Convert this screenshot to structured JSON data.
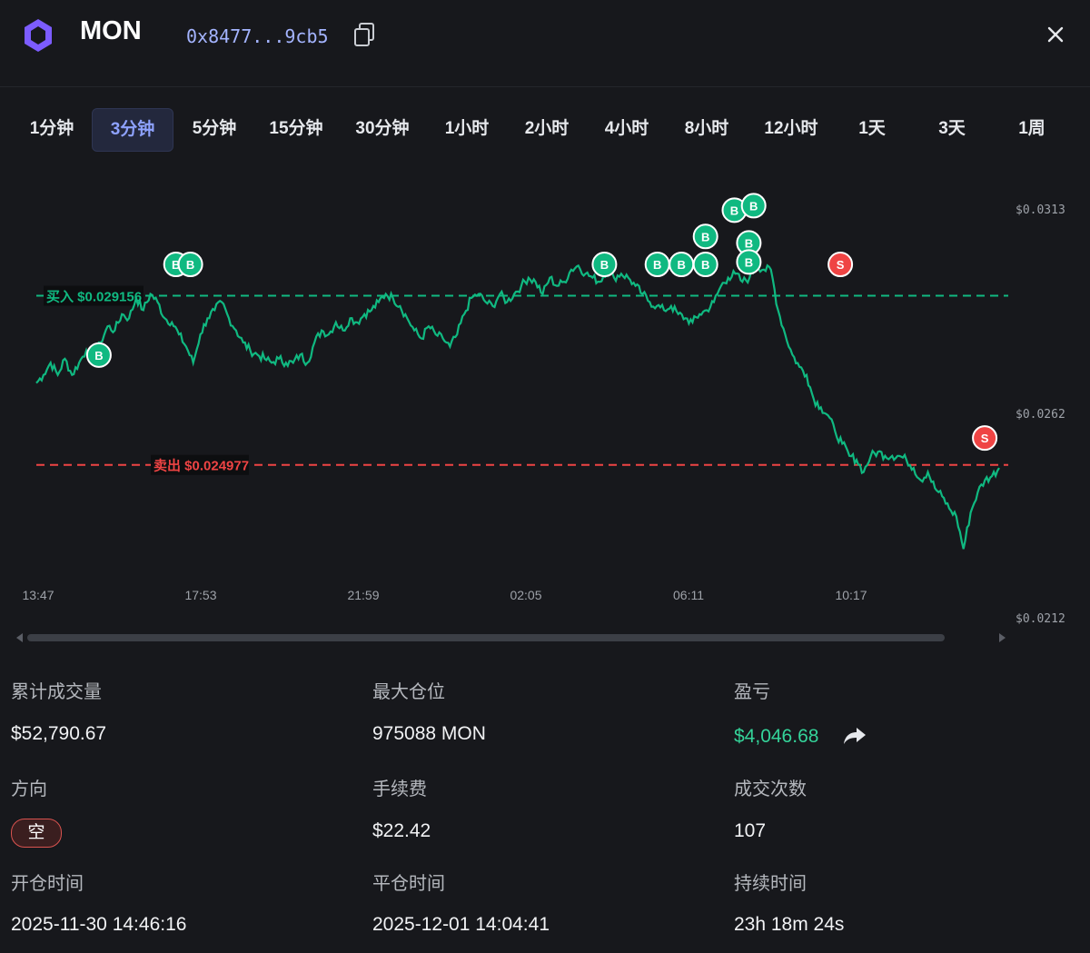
{
  "header": {
    "token": "MON",
    "address": "0x8477...9cb5",
    "logo_icon": "hexagon-logo",
    "copy_icon": "copy-icon",
    "close_icon": "close-icon"
  },
  "timeframes": {
    "active": "3分钟",
    "items": [
      "1分钟",
      "3分钟",
      "5分钟",
      "15分钟",
      "30分钟",
      "1小时",
      "2小时",
      "4小时",
      "8小时",
      "12小时",
      "1天",
      "3天",
      "1周"
    ]
  },
  "chart_data": {
    "type": "line",
    "x_ticks": [
      "13:47",
      "17:53",
      "21:59",
      "02:05",
      "06:11",
      "10:17"
    ],
    "y_ticks": [
      "$0.0313",
      "$0.0262",
      "$0.0212"
    ],
    "ylim": [
      0.0212,
      0.0313
    ],
    "series_color": "#10b981",
    "reference_lines": [
      {
        "label": "买入 $0.029156",
        "value": 0.029156,
        "color": "#10b981",
        "style": "dashed"
      },
      {
        "label": "卖出 $0.024977",
        "value": 0.024977,
        "color": "#ef4444",
        "style": "dashed"
      }
    ],
    "markers": [
      {
        "type": "B",
        "t": 0.065,
        "price": 0.02769
      },
      {
        "type": "B",
        "t": 0.145,
        "price": 0.02993
      },
      {
        "type": "B",
        "t": 0.16,
        "price": 0.02993
      },
      {
        "type": "B",
        "t": 0.59,
        "price": 0.02993
      },
      {
        "type": "B",
        "t": 0.645,
        "price": 0.02993
      },
      {
        "type": "B",
        "t": 0.67,
        "price": 0.02993
      },
      {
        "type": "B",
        "t": 0.695,
        "price": 0.02993
      },
      {
        "type": "B",
        "t": 0.695,
        "price": 0.03062
      },
      {
        "type": "B",
        "t": 0.725,
        "price": 0.03127
      },
      {
        "type": "B",
        "t": 0.745,
        "price": 0.03138
      },
      {
        "type": "B",
        "t": 0.74,
        "price": 0.03046
      },
      {
        "type": "B",
        "t": 0.74,
        "price": 0.02999
      },
      {
        "type": "S",
        "t": 0.835,
        "price": 0.02993
      },
      {
        "type": "S",
        "t": 0.985,
        "price": 0.02564
      }
    ],
    "price_path": [
      [
        0,
        0.027
      ],
      [
        0.01,
        0.0272
      ],
      [
        0.02,
        0.0275
      ],
      [
        0.03,
        0.0272
      ],
      [
        0.04,
        0.0276
      ],
      [
        0.05,
        0.0272
      ],
      [
        0.06,
        0.0275
      ],
      [
        0.07,
        0.0278
      ],
      [
        0.08,
        0.0276
      ],
      [
        0.09,
        0.028
      ],
      [
        0.1,
        0.0284
      ],
      [
        0.11,
        0.0283
      ],
      [
        0.12,
        0.0287
      ],
      [
        0.13,
        0.0286
      ],
      [
        0.14,
        0.0291
      ],
      [
        0.15,
        0.0288
      ],
      [
        0.16,
        0.0292
      ],
      [
        0.17,
        0.029
      ],
      [
        0.18,
        0.0286
      ],
      [
        0.19,
        0.0285
      ],
      [
        0.2,
        0.0282
      ],
      [
        0.21,
        0.0279
      ],
      [
        0.22,
        0.0275
      ],
      [
        0.23,
        0.0282
      ],
      [
        0.24,
        0.0286
      ],
      [
        0.25,
        0.0288
      ],
      [
        0.26,
        0.029
      ],
      [
        0.27,
        0.0286
      ],
      [
        0.28,
        0.0283
      ],
      [
        0.29,
        0.028
      ],
      [
        0.3,
        0.0278
      ],
      [
        0.31,
        0.0277
      ],
      [
        0.32,
        0.0276
      ],
      [
        0.33,
        0.0275
      ],
      [
        0.34,
        0.0276
      ],
      [
        0.35,
        0.0275
      ],
      [
        0.36,
        0.0275
      ],
      [
        0.37,
        0.0277
      ],
      [
        0.38,
        0.0275
      ],
      [
        0.39,
        0.028
      ],
      [
        0.4,
        0.0283
      ],
      [
        0.41,
        0.0282
      ],
      [
        0.42,
        0.0285
      ],
      [
        0.43,
        0.0283
      ],
      [
        0.44,
        0.0286
      ],
      [
        0.45,
        0.0285
      ],
      [
        0.46,
        0.0287
      ],
      [
        0.47,
        0.0288
      ],
      [
        0.48,
        0.029
      ],
      [
        0.49,
        0.0292
      ],
      [
        0.5,
        0.0291
      ],
      [
        0.51,
        0.0289
      ],
      [
        0.52,
        0.0286
      ],
      [
        0.53,
        0.0283
      ],
      [
        0.54,
        0.0281
      ],
      [
        0.55,
        0.0284
      ],
      [
        0.56,
        0.0282
      ],
      [
        0.57,
        0.0281
      ],
      [
        0.58,
        0.0279
      ],
      [
        0.59,
        0.0282
      ],
      [
        0.6,
        0.0287
      ],
      [
        0.61,
        0.0291
      ],
      [
        0.62,
        0.0292
      ],
      [
        0.63,
        0.029
      ],
      [
        0.64,
        0.0289
      ],
      [
        0.65,
        0.0292
      ],
      [
        0.66,
        0.029
      ],
      [
        0.67,
        0.0292
      ],
      [
        0.68,
        0.0294
      ],
      [
        0.69,
        0.0296
      ],
      [
        0.7,
        0.0295
      ],
      [
        0.71,
        0.0292
      ],
      [
        0.72,
        0.0296
      ],
      [
        0.73,
        0.0294
      ],
      [
        0.74,
        0.0295
      ],
      [
        0.75,
        0.0298
      ],
      [
        0.76,
        0.0299
      ],
      [
        0.77,
        0.0297
      ],
      [
        0.78,
        0.0296
      ],
      [
        0.79,
        0.0295
      ],
      [
        0.8,
        0.0298
      ],
      [
        0.81,
        0.0296
      ],
      [
        0.82,
        0.0297
      ],
      [
        0.83,
        0.0296
      ],
      [
        0.84,
        0.0294
      ],
      [
        0.85,
        0.0292
      ],
      [
        0.86,
        0.029
      ],
      [
        0.87,
        0.0289
      ],
      [
        0.88,
        0.0288
      ],
      [
        0.89,
        0.0289
      ],
      [
        0.9,
        0.0287
      ],
      [
        0.91,
        0.0286
      ],
      [
        0.92,
        0.0285
      ],
      [
        0.93,
        0.0287
      ],
      [
        0.94,
        0.0288
      ],
      [
        0.95,
        0.029
      ],
      [
        0.96,
        0.0294
      ],
      [
        0.97,
        0.0296
      ],
      [
        0.98,
        0.0297
      ],
      [
        0.99,
        0.0295
      ],
      [
        1.0,
        0.0296
      ],
      [
        1.01,
        0.0299
      ],
      [
        1.02,
        0.0298
      ],
      [
        1.03,
        0.0298
      ],
      [
        1.04,
        0.0288
      ],
      [
        1.05,
        0.0282
      ],
      [
        1.06,
        0.0277
      ],
      [
        1.07,
        0.0274
      ],
      [
        1.08,
        0.0272
      ],
      [
        1.09,
        0.0266
      ],
      [
        1.1,
        0.0264
      ],
      [
        1.11,
        0.0262
      ],
      [
        1.12,
        0.0258
      ],
      [
        1.13,
        0.0255
      ],
      [
        1.14,
        0.0252
      ],
      [
        1.15,
        0.0251
      ],
      [
        1.16,
        0.0248
      ],
      [
        1.17,
        0.0252
      ],
      [
        1.18,
        0.0253
      ],
      [
        1.19,
        0.0252
      ],
      [
        1.2,
        0.0252
      ],
      [
        1.21,
        0.0252
      ],
      [
        1.22,
        0.0251
      ],
      [
        1.23,
        0.0249
      ],
      [
        1.24,
        0.0246
      ],
      [
        1.25,
        0.0248
      ],
      [
        1.26,
        0.0244
      ],
      [
        1.27,
        0.0242
      ],
      [
        1.28,
        0.0239
      ],
      [
        1.29,
        0.0237
      ],
      [
        1.3,
        0.0229
      ],
      [
        1.31,
        0.0238
      ],
      [
        1.32,
        0.0243
      ],
      [
        1.33,
        0.0246
      ],
      [
        1.34,
        0.0247
      ],
      [
        1.35,
        0.0249
      ]
    ]
  },
  "stats": {
    "volume": {
      "label": "累计成交量",
      "value": "$52,790.67"
    },
    "max_position": {
      "label": "最大仓位",
      "value": "975088 MON"
    },
    "pnl": {
      "label": "盈亏",
      "value": "$4,046.68",
      "icon": "share-icon"
    },
    "direction": {
      "label": "方向",
      "value": "空"
    },
    "fee": {
      "label": "手续费",
      "value": "$22.42"
    },
    "trades": {
      "label": "成交次数",
      "value": "107"
    },
    "open_time": {
      "label": "开仓时间",
      "value": "2025-11-30 14:46:16"
    },
    "close_time": {
      "label": "平仓时间",
      "value": "2025-12-01 14:04:41"
    },
    "duration": {
      "label": "持续时间",
      "value": "23h 18m 24s"
    }
  }
}
